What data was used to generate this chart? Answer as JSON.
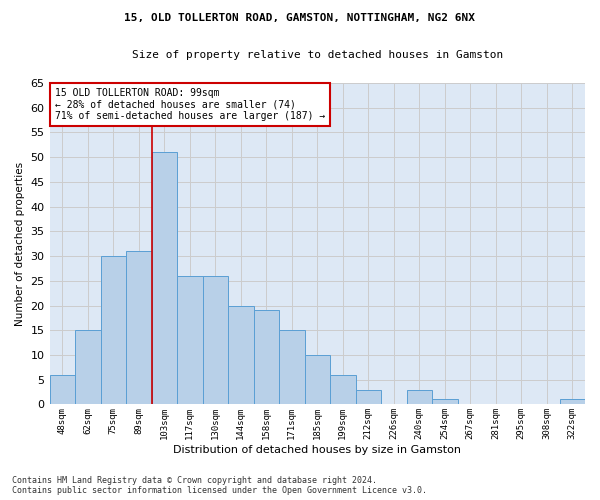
{
  "title1": "15, OLD TOLLERTON ROAD, GAMSTON, NOTTINGHAM, NG2 6NX",
  "title2": "Size of property relative to detached houses in Gamston",
  "xlabel": "Distribution of detached houses by size in Gamston",
  "ylabel": "Number of detached properties",
  "bar_labels": [
    "48sqm",
    "62sqm",
    "75sqm",
    "89sqm",
    "103sqm",
    "117sqm",
    "130sqm",
    "144sqm",
    "158sqm",
    "171sqm",
    "185sqm",
    "199sqm",
    "212sqm",
    "226sqm",
    "240sqm",
    "254sqm",
    "267sqm",
    "281sqm",
    "295sqm",
    "308sqm",
    "322sqm"
  ],
  "bar_values": [
    6,
    15,
    30,
    31,
    51,
    26,
    26,
    20,
    19,
    15,
    10,
    6,
    3,
    0,
    3,
    1,
    0,
    0,
    0,
    0,
    1
  ],
  "bar_color": "#b8d0e8",
  "bar_edge_color": "#5a9fd4",
  "annotation_line_index": 3.5,
  "annotation_box_text": "15 OLD TOLLERTON ROAD: 99sqm\n← 28% of detached houses are smaller (74)\n71% of semi-detached houses are larger (187) →",
  "annotation_box_color": "#ffffff",
  "annotation_box_edge_color": "#cc0000",
  "annotation_line_color": "#cc0000",
  "ylim": [
    0,
    65
  ],
  "yticks": [
    0,
    5,
    10,
    15,
    20,
    25,
    30,
    35,
    40,
    45,
    50,
    55,
    60,
    65
  ],
  "grid_color": "#cccccc",
  "background_color": "#dde8f5",
  "footer": "Contains HM Land Registry data © Crown copyright and database right 2024.\nContains public sector information licensed under the Open Government Licence v3.0."
}
